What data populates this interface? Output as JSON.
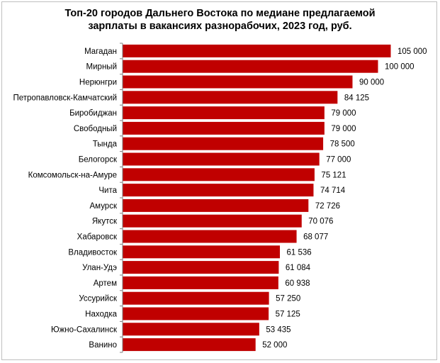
{
  "chart_data": {
    "type": "bar",
    "orientation": "horizontal",
    "title_lines": [
      "Топ-20 городов Дальнего Востока по медиане предлагаемой",
      "зарплаты в вакансиях разнорабочих, 2023 год, руб."
    ],
    "xlim": [
      0,
      105000
    ],
    "grid": false,
    "bar_color": "#c00000",
    "axis_color": "#7f7f7f",
    "categories": [
      "Магадан",
      "Мирный",
      "Нерюнгри",
      "Петропавловск-Камчатский",
      "Биробиджан",
      "Свободный",
      "Тында",
      "Белогорск",
      "Комсомольск-на-Амуре",
      "Чита",
      "Амурск",
      "Якутск",
      "Хабаровск",
      "Владивосток",
      "Улан-Удэ",
      "Артем",
      "Уссурийск",
      "Находка",
      "Южно-Сахалинск",
      "Ванино"
    ],
    "values": [
      105000,
      100000,
      90000,
      84125,
      79000,
      79000,
      78500,
      77000,
      75121,
      74714,
      72726,
      70076,
      68077,
      61536,
      61084,
      60938,
      57250,
      57125,
      53435,
      52000
    ],
    "value_labels": [
      "105 000",
      "100 000",
      "90 000",
      "84 125",
      "79 000",
      "79 000",
      "78 500",
      "77 000",
      "75 121",
      "74 714",
      "72 726",
      "70 076",
      "68 077",
      "61 536",
      "61 084",
      "60 938",
      "57 250",
      "57 125",
      "53 435",
      "52 000"
    ]
  }
}
